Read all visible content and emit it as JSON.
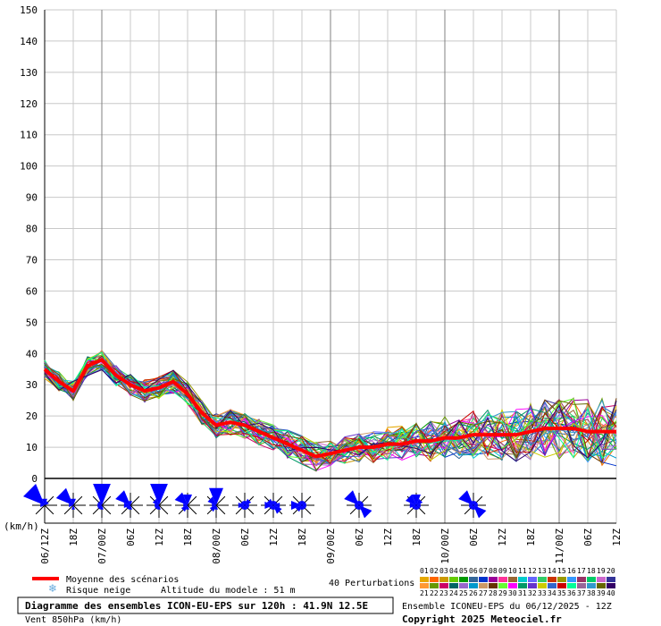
{
  "chart_data": {
    "type": "line",
    "title": "Diagramme des ensembles ICON-EU-EPS sur 120h : 41.9N 12.5E",
    "subtitle": "Vent 850hPa (km/h)",
    "ylabel": "(km/h)",
    "ylim": [
      0,
      150
    ],
    "yticks": [
      0,
      10,
      20,
      30,
      40,
      50,
      60,
      70,
      80,
      90,
      100,
      110,
      120,
      130,
      140,
      150
    ],
    "xlim": [
      0,
      120
    ],
    "x_tick_labels": [
      {
        "h": 0,
        "label": "06/12Z"
      },
      {
        "h": 6,
        "label": "18Z"
      },
      {
        "h": 12,
        "label": "07/00Z"
      },
      {
        "h": 18,
        "label": "06Z"
      },
      {
        "h": 24,
        "label": "12Z"
      },
      {
        "h": 30,
        "label": "18Z"
      },
      {
        "h": 36,
        "label": "08/00Z"
      },
      {
        "h": 42,
        "label": "06Z"
      },
      {
        "h": 48,
        "label": "12Z"
      },
      {
        "h": 54,
        "label": "18Z"
      },
      {
        "h": 60,
        "label": "09/00Z"
      },
      {
        "h": 66,
        "label": "06Z"
      },
      {
        "h": 72,
        "label": "12Z"
      },
      {
        "h": 78,
        "label": "18Z"
      },
      {
        "h": 84,
        "label": "10/00Z"
      },
      {
        "h": 90,
        "label": "06Z"
      },
      {
        "h": 96,
        "label": "12Z"
      },
      {
        "h": 102,
        "label": "18Z"
      },
      {
        "h": 108,
        "label": "11/00Z"
      },
      {
        "h": 114,
        "label": "06Z"
      },
      {
        "h": 120,
        "label": "12Z"
      }
    ],
    "mean": {
      "name": "Moyenne des scénarios",
      "color": "#ff0000",
      "x": [
        0,
        3,
        6,
        9,
        12,
        15,
        18,
        21,
        24,
        27,
        30,
        33,
        36,
        39,
        42,
        45,
        48,
        51,
        54,
        57,
        60,
        63,
        66,
        69,
        72,
        75,
        78,
        81,
        84,
        87,
        90,
        93,
        96,
        99,
        102,
        105,
        108,
        111,
        114,
        117,
        120
      ],
      "y": [
        35,
        31,
        28,
        36,
        38,
        33,
        30,
        28,
        29,
        31,
        27,
        21,
        17,
        18,
        17,
        15,
        13,
        11,
        9,
        7,
        8,
        9,
        10,
        10,
        11,
        11,
        12,
        12,
        13,
        13,
        14,
        14,
        14,
        14,
        15,
        16,
        16,
        16,
        15,
        15,
        15
      ]
    },
    "perturbations_label": "40 Perturbations",
    "perturbation_ids": [
      "01",
      "02",
      "03",
      "04",
      "05",
      "06",
      "07",
      "08",
      "09",
      "10",
      "11",
      "12",
      "13",
      "14",
      "15",
      "16",
      "17",
      "18",
      "19",
      "20",
      "21",
      "22",
      "23",
      "24",
      "25",
      "26",
      "27",
      "28",
      "29",
      "30",
      "31",
      "32",
      "33",
      "34",
      "35",
      "36",
      "37",
      "38",
      "39",
      "40"
    ],
    "perturbation_colors": [
      "#e6a800",
      "#ff6600",
      "#cc9900",
      "#66cc00",
      "#009900",
      "#336699",
      "#0033cc",
      "#990099",
      "#ff3399",
      "#996633",
      "#00cccc",
      "#6666ff",
      "#33cc66",
      "#cc3300",
      "#999900",
      "#3399ff",
      "#993366",
      "#00cc66",
      "#cc66cc",
      "#333399",
      "#ff9933",
      "#669900",
      "#cc0066",
      "#006666",
      "#9966cc",
      "#0099cc",
      "#cc9966",
      "#663300",
      "#66ff33",
      "#ff00ff",
      "#009966",
      "#6633cc",
      "#cccc00",
      "#3366cc",
      "#cc0000",
      "#00ff99",
      "#996699",
      "#3399cc",
      "#666600",
      "#330066"
    ],
    "wind_direction_markers": [
      {
        "h": 0,
        "rose": [
          0.3,
          0.2,
          0.1,
          0.1,
          0.1,
          0.1,
          0.2,
          1.0
        ]
      },
      {
        "h": 6,
        "rose": [
          0.3,
          0.1,
          0.1,
          0.1,
          0.2,
          0.1,
          0.2,
          0.8
        ]
      },
      {
        "h": 12,
        "rose": [
          1.0,
          0.1,
          0.1,
          0.1,
          0.2,
          0.2,
          0.2,
          0.2
        ]
      },
      {
        "h": 18,
        "rose": [
          0.2,
          0.1,
          0.1,
          0.1,
          0.2,
          0.2,
          0.3,
          0.7
        ]
      },
      {
        "h": 24,
        "rose": [
          1.0,
          0.1,
          0.1,
          0.1,
          0.2,
          0.2,
          0.2,
          0.3
        ]
      },
      {
        "h": 30,
        "rose": [
          0.5,
          0.1,
          0.1,
          0.1,
          0.2,
          0.3,
          0.2,
          0.6
        ]
      },
      {
        "h": 36,
        "rose": [
          0.8,
          0.1,
          0.1,
          0.1,
          0.2,
          0.3,
          0.2,
          0.4
        ]
      },
      {
        "h": 42,
        "rose": [
          0.2,
          0.3,
          0.2,
          0.2,
          0.2,
          0.2,
          0.3,
          0.2
        ]
      },
      {
        "h": 48,
        "rose": [
          0.2,
          0.2,
          0.3,
          0.4,
          0.2,
          0.2,
          0.4,
          0.3
        ]
      },
      {
        "h": 54,
        "rose": [
          0.2,
          0.2,
          0.2,
          0.2,
          0.2,
          0.3,
          0.5,
          0.2
        ]
      },
      {
        "h": 66,
        "rose": [
          0.2,
          0.2,
          0.2,
          0.6,
          0.2,
          0.2,
          0.2,
          0.7
        ]
      },
      {
        "h": 78,
        "rose": [
          0.5,
          0.3,
          0.2,
          0.2,
          0.2,
          0.2,
          0.3,
          0.5
        ]
      },
      {
        "h": 90,
        "rose": [
          0.2,
          0.2,
          0.2,
          0.6,
          0.2,
          0.2,
          0.2,
          0.7
        ]
      }
    ],
    "legend": [
      {
        "label": "Moyenne des scénarios",
        "color": "#ff0000"
      },
      {
        "label": "Risque neige",
        "color": "#66aadd"
      }
    ],
    "altitude_text": "Altitude du modele : 51 m",
    "ensemble_text": "Ensemble ICONEU-EPS du 06/12/2025 - 12Z",
    "copyright_text": "Copyright 2025 Meteociel.fr",
    "grid": true,
    "background": "#ffffff",
    "grid_color": "#c8c8c8",
    "day_line_color": "#808080",
    "wind_rose_color": "#0000ff"
  }
}
